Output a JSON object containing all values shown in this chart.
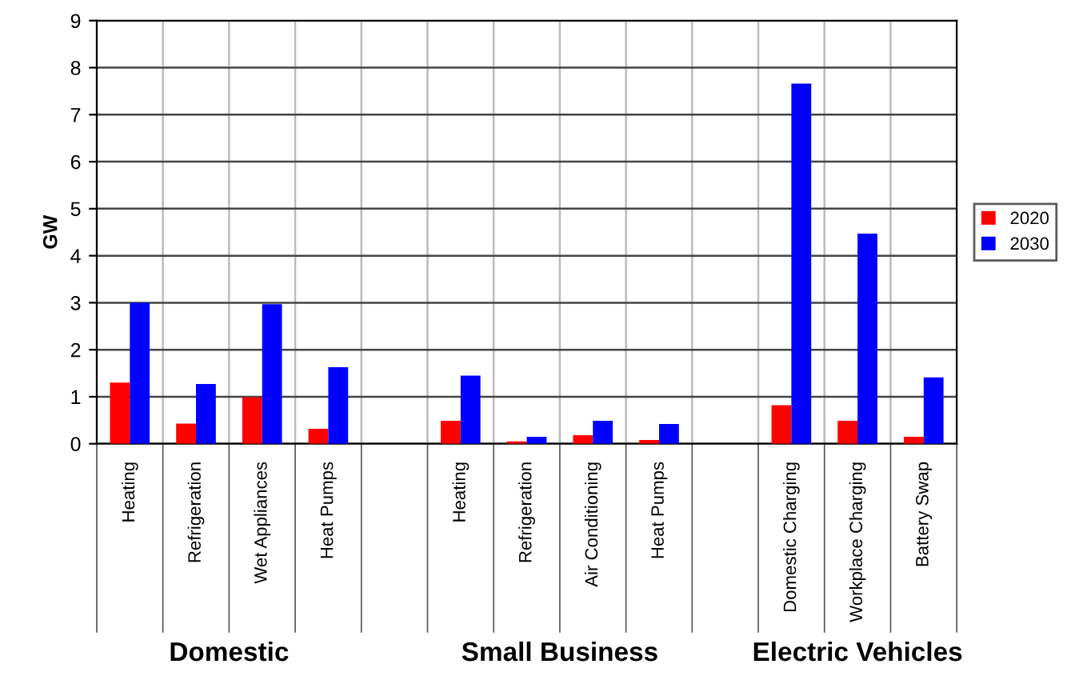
{
  "chart_data": {
    "type": "bar",
    "ylabel": "GW",
    "categories": [
      "Heating",
      "Refrigeration",
      "Wet Appliances",
      "Heat Pumps",
      null,
      "Heating",
      "Refrigeration",
      "Air Conditioning",
      "Heat Pumps",
      null,
      "Domestic Charging",
      "Workplace Charging",
      "Battery Swap"
    ],
    "series": [
      {
        "name": "2020",
        "color": "#ff0000",
        "values": [
          1.3,
          0.43,
          0.99,
          0.32,
          null,
          0.49,
          0.05,
          0.18,
          0.08,
          null,
          0.82,
          0.49,
          0.15
        ]
      },
      {
        "name": "2030",
        "color": "#0000ff",
        "values": [
          3.0,
          1.27,
          2.97,
          1.63,
          null,
          1.45,
          0.15,
          0.49,
          0.42,
          null,
          7.66,
          4.47,
          1.41
        ]
      }
    ],
    "ylim": [
      0,
      9
    ],
    "yticks": [
      0,
      1,
      2,
      3,
      4,
      5,
      6,
      7,
      8,
      9
    ],
    "grid": true,
    "legend": "right",
    "annotations": [
      "Domestic",
      "Small Business",
      "Electric Vehicles"
    ]
  }
}
